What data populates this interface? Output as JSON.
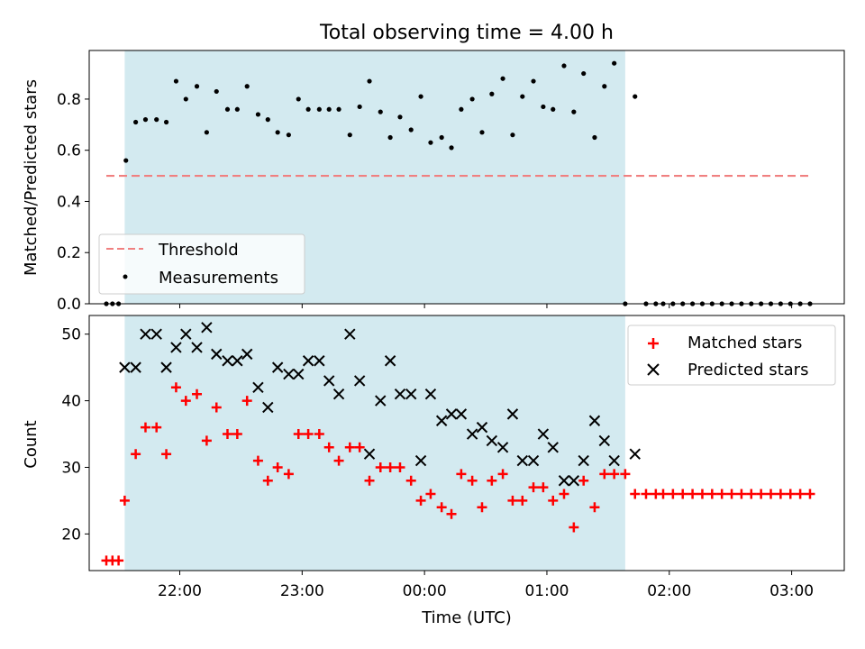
{
  "chart_data": {
    "title": "Total observing time = 4.00 h",
    "xlabel": "Time (UTC)",
    "x_ticks": [
      "22:00",
      "23:00",
      "00:00",
      "01:00",
      "02:00",
      "03:00"
    ],
    "x_tick_hours": [
      22,
      23,
      24,
      25,
      26,
      27
    ],
    "xlim": [
      21.26,
      27.43
    ],
    "shaded_span": {
      "start": 21.55,
      "end": 25.64,
      "color": "#d3eaf0"
    },
    "panels": [
      {
        "type": "scatter",
        "ylabel": "Matched/Predicted stars",
        "ylim": [
          0,
          0.99
        ],
        "y_ticks": [
          0.0,
          0.2,
          0.4,
          0.6,
          0.8
        ],
        "y_tick_labels": [
          "0.0",
          "0.2",
          "0.4",
          "0.6",
          "0.8"
        ],
        "legend": {
          "position": "lower-left",
          "entries": [
            "Threshold",
            "Measurements"
          ]
        },
        "threshold": {
          "name": "Threshold",
          "y": 0.5,
          "x_start": 21.4,
          "x_end": 27.15,
          "color": "#f08080"
        },
        "measurements": {
          "name": "Measurements",
          "color": "#000000",
          "points": [
            [
              21.4,
              0.0
            ],
            [
              21.45,
              0.0
            ],
            [
              21.5,
              0.0
            ],
            [
              21.56,
              0.56
            ],
            [
              21.64,
              0.71
            ],
            [
              21.72,
              0.72
            ],
            [
              21.81,
              0.72
            ],
            [
              21.89,
              0.71
            ],
            [
              21.97,
              0.87
            ],
            [
              22.05,
              0.8
            ],
            [
              22.14,
              0.85
            ],
            [
              22.22,
              0.67
            ],
            [
              22.3,
              0.83
            ],
            [
              22.39,
              0.76
            ],
            [
              22.47,
              0.76
            ],
            [
              22.55,
              0.85
            ],
            [
              22.64,
              0.74
            ],
            [
              22.72,
              0.72
            ],
            [
              22.8,
              0.67
            ],
            [
              22.89,
              0.66
            ],
            [
              22.97,
              0.8
            ],
            [
              23.05,
              0.76
            ],
            [
              23.14,
              0.76
            ],
            [
              23.22,
              0.76
            ],
            [
              23.3,
              0.76
            ],
            [
              23.39,
              0.66
            ],
            [
              23.47,
              0.77
            ],
            [
              23.55,
              0.87
            ],
            [
              23.64,
              0.75
            ],
            [
              23.72,
              0.65
            ],
            [
              23.8,
              0.73
            ],
            [
              23.89,
              0.68
            ],
            [
              23.97,
              0.81
            ],
            [
              24.05,
              0.63
            ],
            [
              24.14,
              0.65
            ],
            [
              24.22,
              0.61
            ],
            [
              24.3,
              0.76
            ],
            [
              24.39,
              0.8
            ],
            [
              24.47,
              0.67
            ],
            [
              24.55,
              0.82
            ],
            [
              24.64,
              0.88
            ],
            [
              24.72,
              0.66
            ],
            [
              24.8,
              0.81
            ],
            [
              24.89,
              0.87
            ],
            [
              24.97,
              0.77
            ],
            [
              25.05,
              0.76
            ],
            [
              25.14,
              0.93
            ],
            [
              25.22,
              0.75
            ],
            [
              25.3,
              0.9
            ],
            [
              25.39,
              0.65
            ],
            [
              25.47,
              0.85
            ],
            [
              25.55,
              0.94
            ],
            [
              25.72,
              0.81
            ],
            [
              25.64,
              0.0
            ],
            [
              25.81,
              0.0
            ],
            [
              25.89,
              0.0
            ],
            [
              25.95,
              0.0
            ],
            [
              26.03,
              0.0
            ],
            [
              26.11,
              0.0
            ],
            [
              26.19,
              0.0
            ],
            [
              26.27,
              0.0
            ],
            [
              26.35,
              0.0
            ],
            [
              26.43,
              0.0
            ],
            [
              26.51,
              0.0
            ],
            [
              26.59,
              0.0
            ],
            [
              26.67,
              0.0
            ],
            [
              26.75,
              0.0
            ],
            [
              26.83,
              0.0
            ],
            [
              26.91,
              0.0
            ],
            [
              26.99,
              0.0
            ],
            [
              27.07,
              0.0
            ],
            [
              27.15,
              0.0
            ]
          ]
        }
      },
      {
        "type": "scatter",
        "ylabel": "Count",
        "ylim": [
          14.5,
          52.8
        ],
        "y_ticks": [
          20,
          30,
          40,
          50
        ],
        "y_tick_labels": [
          "20",
          "30",
          "40",
          "50"
        ],
        "legend": {
          "position": "upper-right",
          "entries": [
            "Matched stars",
            "Predicted stars"
          ]
        },
        "series": [
          {
            "name": "Matched stars",
            "marker": "plus",
            "color": "#ff0000",
            "points": [
              [
                21.4,
                16
              ],
              [
                21.45,
                16
              ],
              [
                21.5,
                16
              ],
              [
                21.55,
                25
              ],
              [
                21.64,
                32
              ],
              [
                21.72,
                36
              ],
              [
                21.81,
                36
              ],
              [
                21.89,
                32
              ],
              [
                21.97,
                42
              ],
              [
                22.05,
                40
              ],
              [
                22.14,
                41
              ],
              [
                22.22,
                34
              ],
              [
                22.3,
                39
              ],
              [
                22.39,
                35
              ],
              [
                22.47,
                35
              ],
              [
                22.55,
                40
              ],
              [
                22.64,
                31
              ],
              [
                22.72,
                28
              ],
              [
                22.8,
                30
              ],
              [
                22.89,
                29
              ],
              [
                22.97,
                35
              ],
              [
                23.05,
                35
              ],
              [
                23.14,
                35
              ],
              [
                23.22,
                33
              ],
              [
                23.3,
                31
              ],
              [
                23.39,
                33
              ],
              [
                23.47,
                33
              ],
              [
                23.55,
                28
              ],
              [
                23.64,
                30
              ],
              [
                23.72,
                30
              ],
              [
                23.8,
                30
              ],
              [
                23.89,
                28
              ],
              [
                23.97,
                25
              ],
              [
                24.05,
                26
              ],
              [
                24.14,
                24
              ],
              [
                24.22,
                23
              ],
              [
                24.3,
                29
              ],
              [
                24.39,
                28
              ],
              [
                24.47,
                24
              ],
              [
                24.55,
                28
              ],
              [
                24.64,
                29
              ],
              [
                24.72,
                25
              ],
              [
                24.8,
                25
              ],
              [
                24.89,
                27
              ],
              [
                24.97,
                27
              ],
              [
                25.05,
                25
              ],
              [
                25.14,
                26
              ],
              [
                25.22,
                21
              ],
              [
                25.3,
                28
              ],
              [
                25.39,
                24
              ],
              [
                25.47,
                29
              ],
              [
                25.55,
                29
              ],
              [
                25.64,
                29
              ],
              [
                25.72,
                26
              ],
              [
                25.81,
                26
              ],
              [
                25.89,
                26
              ],
              [
                25.95,
                26
              ],
              [
                26.03,
                26
              ],
              [
                26.11,
                26
              ],
              [
                26.19,
                26
              ],
              [
                26.27,
                26
              ],
              [
                26.35,
                26
              ],
              [
                26.43,
                26
              ],
              [
                26.51,
                26
              ],
              [
                26.59,
                26
              ],
              [
                26.67,
                26
              ],
              [
                26.75,
                26
              ],
              [
                26.83,
                26
              ],
              [
                26.91,
                26
              ],
              [
                26.99,
                26
              ],
              [
                27.07,
                26
              ],
              [
                27.15,
                26
              ]
            ]
          },
          {
            "name": "Predicted stars",
            "marker": "x",
            "color": "#000000",
            "points": [
              [
                21.55,
                45
              ],
              [
                21.64,
                45
              ],
              [
                21.72,
                50
              ],
              [
                21.81,
                50
              ],
              [
                21.89,
                45
              ],
              [
                21.97,
                48
              ],
              [
                22.05,
                50
              ],
              [
                22.14,
                48
              ],
              [
                22.22,
                51
              ],
              [
                22.3,
                47
              ],
              [
                22.39,
                46
              ],
              [
                22.47,
                46
              ],
              [
                22.55,
                47
              ],
              [
                22.64,
                42
              ],
              [
                22.72,
                39
              ],
              [
                22.8,
                45
              ],
              [
                22.89,
                44
              ],
              [
                22.97,
                44
              ],
              [
                23.05,
                46
              ],
              [
                23.14,
                46
              ],
              [
                23.22,
                43
              ],
              [
                23.3,
                41
              ],
              [
                23.39,
                50
              ],
              [
                23.47,
                43
              ],
              [
                23.55,
                32
              ],
              [
                23.64,
                40
              ],
              [
                23.72,
                46
              ],
              [
                23.8,
                41
              ],
              [
                23.89,
                41
              ],
              [
                23.97,
                31
              ],
              [
                24.05,
                41
              ],
              [
                24.14,
                37
              ],
              [
                24.22,
                38
              ],
              [
                24.3,
                38
              ],
              [
                24.39,
                35
              ],
              [
                24.47,
                36
              ],
              [
                24.55,
                34
              ],
              [
                24.64,
                33
              ],
              [
                24.72,
                38
              ],
              [
                24.8,
                31
              ],
              [
                24.89,
                31
              ],
              [
                24.97,
                35
              ],
              [
                25.05,
                33
              ],
              [
                25.14,
                28
              ],
              [
                25.22,
                28
              ],
              [
                25.3,
                31
              ],
              [
                25.39,
                37
              ],
              [
                25.47,
                34
              ],
              [
                25.55,
                31
              ],
              [
                25.72,
                32
              ]
            ]
          }
        ]
      }
    ]
  }
}
